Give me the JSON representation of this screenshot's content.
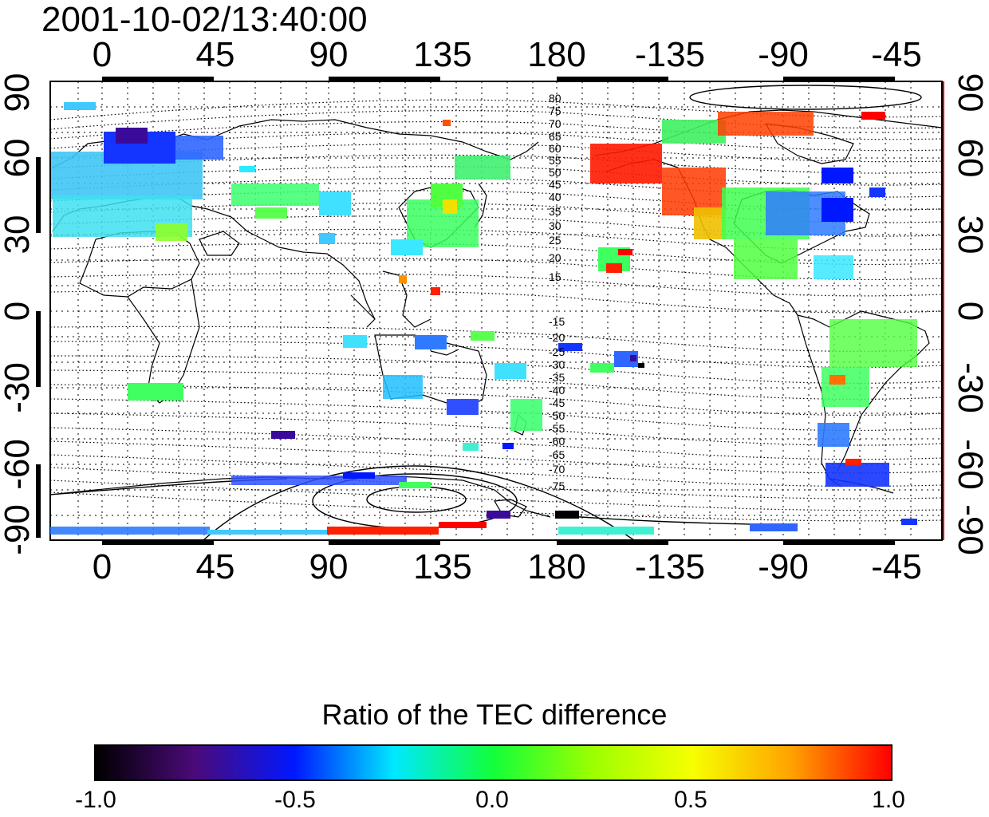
{
  "title": "2001-10-02/13:40:00",
  "map": {
    "x_tick_labels": [
      "0",
      "45",
      "90",
      "135",
      "180",
      "-135",
      "-90",
      "-45"
    ],
    "y_tick_labels": [
      "90",
      "60",
      "30",
      "0",
      "-30",
      "-60",
      "-90"
    ],
    "magnetic_latitude_labels_north": [
      "80",
      "75",
      "70",
      "65",
      "60",
      "55",
      "50",
      "45",
      "40",
      "35",
      "30",
      "25",
      "20",
      "15"
    ],
    "magnetic_latitude_labels_south": [
      "-15",
      "-20",
      "-25",
      "-30",
      "-35",
      "-40",
      "-45",
      "-50",
      "-55",
      "-60",
      "-65",
      "-70",
      "-75"
    ],
    "grid": true
  },
  "colorbar": {
    "title": "Ratio of the TEC difference",
    "tick_labels": [
      "-1.0",
      "-0.5",
      "0.0",
      "0.5",
      "1.0"
    ],
    "range": [
      -1.0,
      1.0
    ],
    "colors": [
      "#000000",
      "#4b0a7a",
      "#0018ff",
      "#00e8ff",
      "#12ff3a",
      "#9cff00",
      "#f6ff00",
      "#ffa200",
      "#ff0000"
    ]
  }
}
